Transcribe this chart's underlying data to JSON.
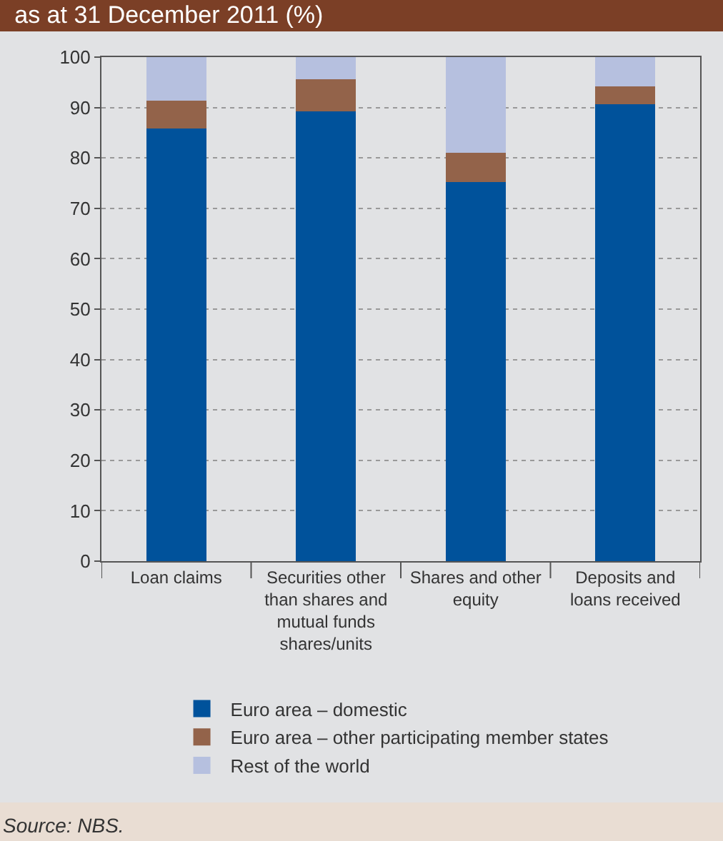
{
  "chart_data": {
    "type": "bar",
    "stacked": true,
    "title": "as at 31 December 2011 (%)",
    "categories": [
      "Loan claims",
      "Securities other than shares and mutual funds shares/units",
      "Shares and other equity",
      "Deposits and loans received"
    ],
    "series": [
      {
        "name": "Euro area – domestic",
        "color": "#00529b",
        "values": [
          85.8,
          89.2,
          75.2,
          90.6
        ]
      },
      {
        "name": "Euro area – other participating member states",
        "color": "#93634a",
        "values": [
          5.6,
          6.4,
          5.8,
          3.6
        ]
      },
      {
        "name": "Rest of the world",
        "color": "#b6c0df",
        "values": [
          8.6,
          4.4,
          19.0,
          5.8
        ]
      }
    ],
    "ylim": [
      0,
      100
    ],
    "yticks": [
      0,
      10,
      20,
      30,
      40,
      50,
      60,
      70,
      80,
      90,
      100
    ],
    "grid": "y",
    "legend": "bottom",
    "annotations": [
      "Source: NBS."
    ]
  }
}
